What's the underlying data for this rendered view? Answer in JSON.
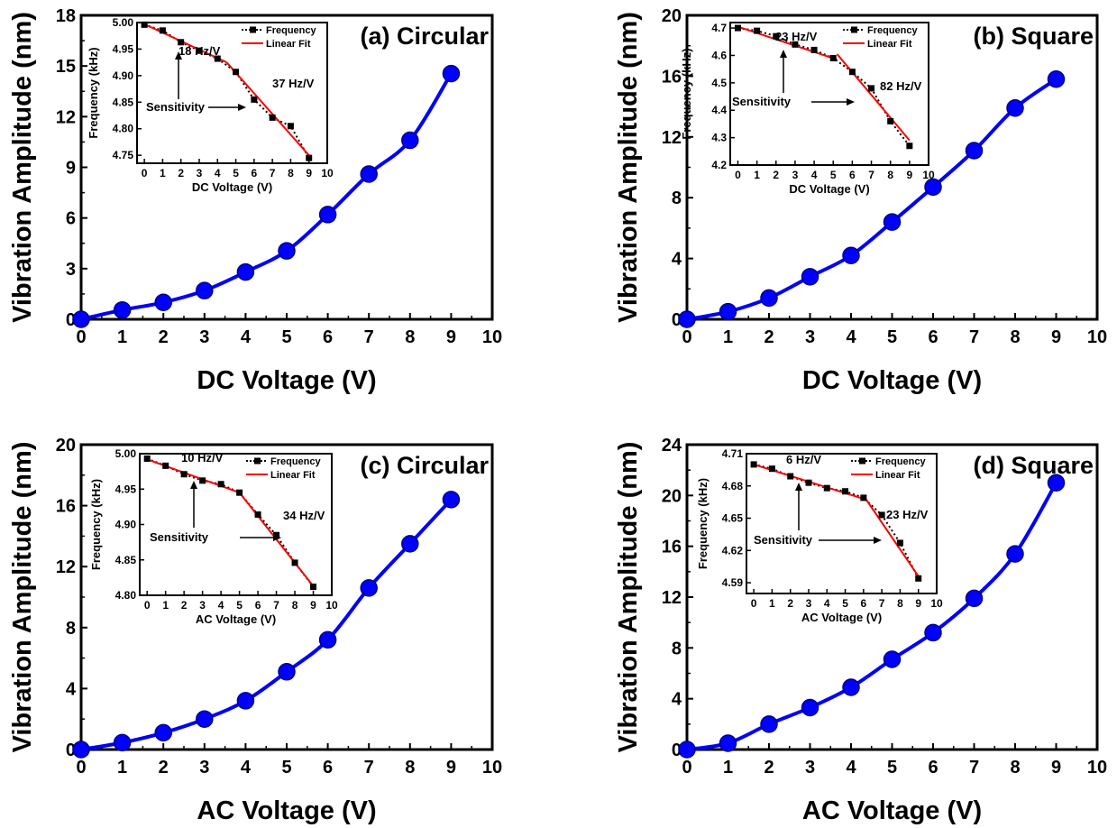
{
  "chart_data": [
    {
      "panel": "(a) Circular",
      "type": "line",
      "xlabel": "DC Voltage (V)",
      "ylabel": "Vibration Amplitude (nm)",
      "xlim": [
        0,
        10
      ],
      "ylim": [
        0,
        18
      ],
      "xticks": [
        0,
        1,
        2,
        3,
        4,
        5,
        6,
        7,
        8,
        9,
        10
      ],
      "yticks": [
        0,
        3,
        6,
        9,
        12,
        15,
        18
      ],
      "x": [
        0,
        1,
        2,
        3,
        4,
        5,
        6,
        7,
        8,
        9
      ],
      "y": [
        0,
        0.55,
        1.0,
        1.7,
        2.8,
        4.05,
        6.2,
        8.6,
        10.6,
        14.55
      ],
      "color": "#0000ff",
      "inset": {
        "xlabel": "DC Voltage (V)",
        "ylabel": "Frequency (kHz)",
        "xlim": [
          -0.4,
          10
        ],
        "ylim": [
          4.735,
          5.0
        ],
        "xticks": [
          0,
          1,
          2,
          3,
          4,
          5,
          6,
          7,
          8,
          9,
          10
        ],
        "yticks": [
          4.75,
          4.8,
          4.85,
          4.9,
          4.95,
          5.0
        ],
        "ytick_labels": [
          "4.75",
          "4.80",
          "4.85",
          "4.90",
          "4.95",
          "5.00"
        ],
        "x": [
          0,
          1,
          2,
          3,
          4,
          5,
          6,
          7,
          8,
          9
        ],
        "y": [
          4.996,
          4.985,
          4.963,
          4.947,
          4.932,
          4.907,
          4.855,
          4.821,
          4.805,
          4.745
        ],
        "fit1": [
          [
            0,
            4.997
          ],
          [
            4.5,
            4.925
          ]
        ],
        "fit2": [
          [
            4.5,
            4.925
          ],
          [
            9,
            4.75
          ]
        ],
        "legend": [
          "Frequency",
          "Linear  Fit"
        ],
        "sensitivity_label": "Sensitivity",
        "slope1_label": "18 Hz/V",
        "slope2_label": "37 Hz/V"
      }
    },
    {
      "panel": "(b) Square",
      "type": "line",
      "xlabel": "DC Voltage (V)",
      "ylabel": "Vibration Amplitude (nm)",
      "xlim": [
        0,
        10
      ],
      "ylim": [
        0,
        20
      ],
      "xticks": [
        0,
        1,
        2,
        3,
        4,
        5,
        6,
        7,
        8,
        9,
        10
      ],
      "yticks": [
        0,
        4,
        8,
        12,
        16,
        20
      ],
      "x": [
        0,
        1,
        2,
        3,
        4,
        5,
        6,
        7,
        8,
        9
      ],
      "y": [
        0,
        0.5,
        1.4,
        2.8,
        4.2,
        6.4,
        8.7,
        11.1,
        13.9,
        15.8
      ],
      "color": "#0000ff",
      "inset": {
        "xlabel": "DC Voltage (V)",
        "ylabel": "Frequency (kHz)",
        "xlim": [
          -0.4,
          10
        ],
        "ylim": [
          4.2,
          4.72
        ],
        "xticks": [
          0,
          1,
          2,
          3,
          4,
          5,
          6,
          7,
          8,
          9,
          10
        ],
        "yticks": [
          4.2,
          4.3,
          4.4,
          4.5,
          4.6,
          4.7
        ],
        "ytick_labels": [
          "4.2",
          "4.3",
          "4.4",
          "4.5",
          "4.6",
          "4.7"
        ],
        "x": [
          0,
          1,
          2,
          3,
          4,
          5,
          6,
          7,
          8,
          9
        ],
        "y": [
          4.7,
          4.69,
          4.67,
          4.64,
          4.62,
          4.59,
          4.54,
          4.48,
          4.36,
          4.27
        ],
        "fit1": [
          [
            0,
            4.705
          ],
          [
            5.2,
            4.585
          ]
        ],
        "fit2": [
          [
            5.2,
            4.605
          ],
          [
            9,
            4.29
          ]
        ],
        "legend": [
          "Frequency",
          "Linear Fit"
        ],
        "sensitivity_label": "Sensitivity",
        "slope1_label": "23 Hz/V",
        "slope2_label": "82 Hz/V"
      }
    },
    {
      "panel": "(c) Circular",
      "type": "line",
      "xlabel": "AC Voltage (V)",
      "ylabel": "Vibration Amplitude (nm)",
      "xlim": [
        0,
        10
      ],
      "ylim": [
        0,
        20
      ],
      "xticks": [
        0,
        1,
        2,
        3,
        4,
        5,
        6,
        7,
        8,
        9,
        10
      ],
      "yticks": [
        0,
        4,
        8,
        12,
        16,
        20
      ],
      "x": [
        0,
        1,
        2,
        3,
        4,
        5,
        6,
        7,
        8,
        9
      ],
      "y": [
        0,
        0.45,
        1.1,
        2.0,
        3.2,
        5.1,
        7.2,
        10.6,
        13.5,
        16.4
      ],
      "color": "#0000ff",
      "inset": {
        "xlabel": "AC Voltage (V)",
        "ylabel": "Frequency (kHz)",
        "xlim": [
          -0.4,
          10
        ],
        "ylim": [
          4.8,
          5.0
        ],
        "xticks": [
          0,
          1,
          2,
          3,
          4,
          5,
          6,
          7,
          8,
          9,
          10
        ],
        "yticks": [
          4.8,
          4.85,
          4.9,
          4.95,
          5.0
        ],
        "ytick_labels": [
          "4.80",
          "4.85",
          "4.90",
          "4.95",
          "5.00"
        ],
        "x": [
          0,
          1,
          2,
          3,
          4,
          5,
          6,
          7,
          8,
          9
        ],
        "y": [
          4.993,
          4.983,
          4.971,
          4.962,
          4.957,
          4.945,
          4.914,
          4.885,
          4.846,
          4.812
        ],
        "fit1": [
          [
            0,
            4.992
          ],
          [
            5,
            4.945
          ]
        ],
        "fit2": [
          [
            5,
            4.945
          ],
          [
            9,
            4.813
          ]
        ],
        "legend": [
          "Frequency",
          "Linear Fit"
        ],
        "sensitivity_label": "Sensitivity",
        "slope1_label": "10 Hz/V",
        "slope2_label": "34 Hz/V"
      }
    },
    {
      "panel": "(d) Square",
      "type": "line",
      "xlabel": "AC Voltage (V)",
      "ylabel": "Vibration Amplitude (nm)",
      "xlim": [
        0,
        10
      ],
      "ylim": [
        0,
        24
      ],
      "xticks": [
        0,
        1,
        2,
        3,
        4,
        5,
        6,
        7,
        8,
        9,
        10
      ],
      "yticks": [
        0,
        4,
        8,
        12,
        16,
        20,
        24
      ],
      "x": [
        0,
        1,
        2,
        3,
        4,
        5,
        6,
        7,
        8,
        9
      ],
      "y": [
        0,
        0.5,
        2.0,
        3.3,
        4.9,
        7.1,
        9.2,
        11.9,
        15.4,
        21.0
      ],
      "color": "#0000ff",
      "inset": {
        "xlabel": "AC Voltage (V)",
        "ylabel": "Frequency (kHz)",
        "xlim": [
          -0.4,
          10
        ],
        "ylim": [
          4.58,
          4.71
        ],
        "xticks": [
          0,
          1,
          2,
          3,
          4,
          5,
          6,
          7,
          8,
          9,
          10
        ],
        "yticks": [
          4.59,
          4.62,
          4.65,
          4.68,
          4.71
        ],
        "ytick_labels": [
          "4.59",
          "4.62",
          "4.65",
          "4.68",
          "4.71"
        ],
        "x": [
          0,
          1,
          2,
          3,
          4,
          5,
          6,
          7,
          8,
          9
        ],
        "y": [
          4.7,
          4.696,
          4.689,
          4.683,
          4.678,
          4.675,
          4.669,
          4.653,
          4.627,
          4.594
        ],
        "fit1": [
          [
            0,
            4.7
          ],
          [
            6,
            4.668
          ]
        ],
        "fit2": [
          [
            6,
            4.671
          ],
          [
            9,
            4.596
          ]
        ],
        "legend": [
          "Frequency",
          "Linear  Fit"
        ],
        "sensitivity_label": "Sensitivity",
        "slope1_label": "6 Hz/V",
        "slope2_label": "23 Hz/V"
      }
    }
  ]
}
